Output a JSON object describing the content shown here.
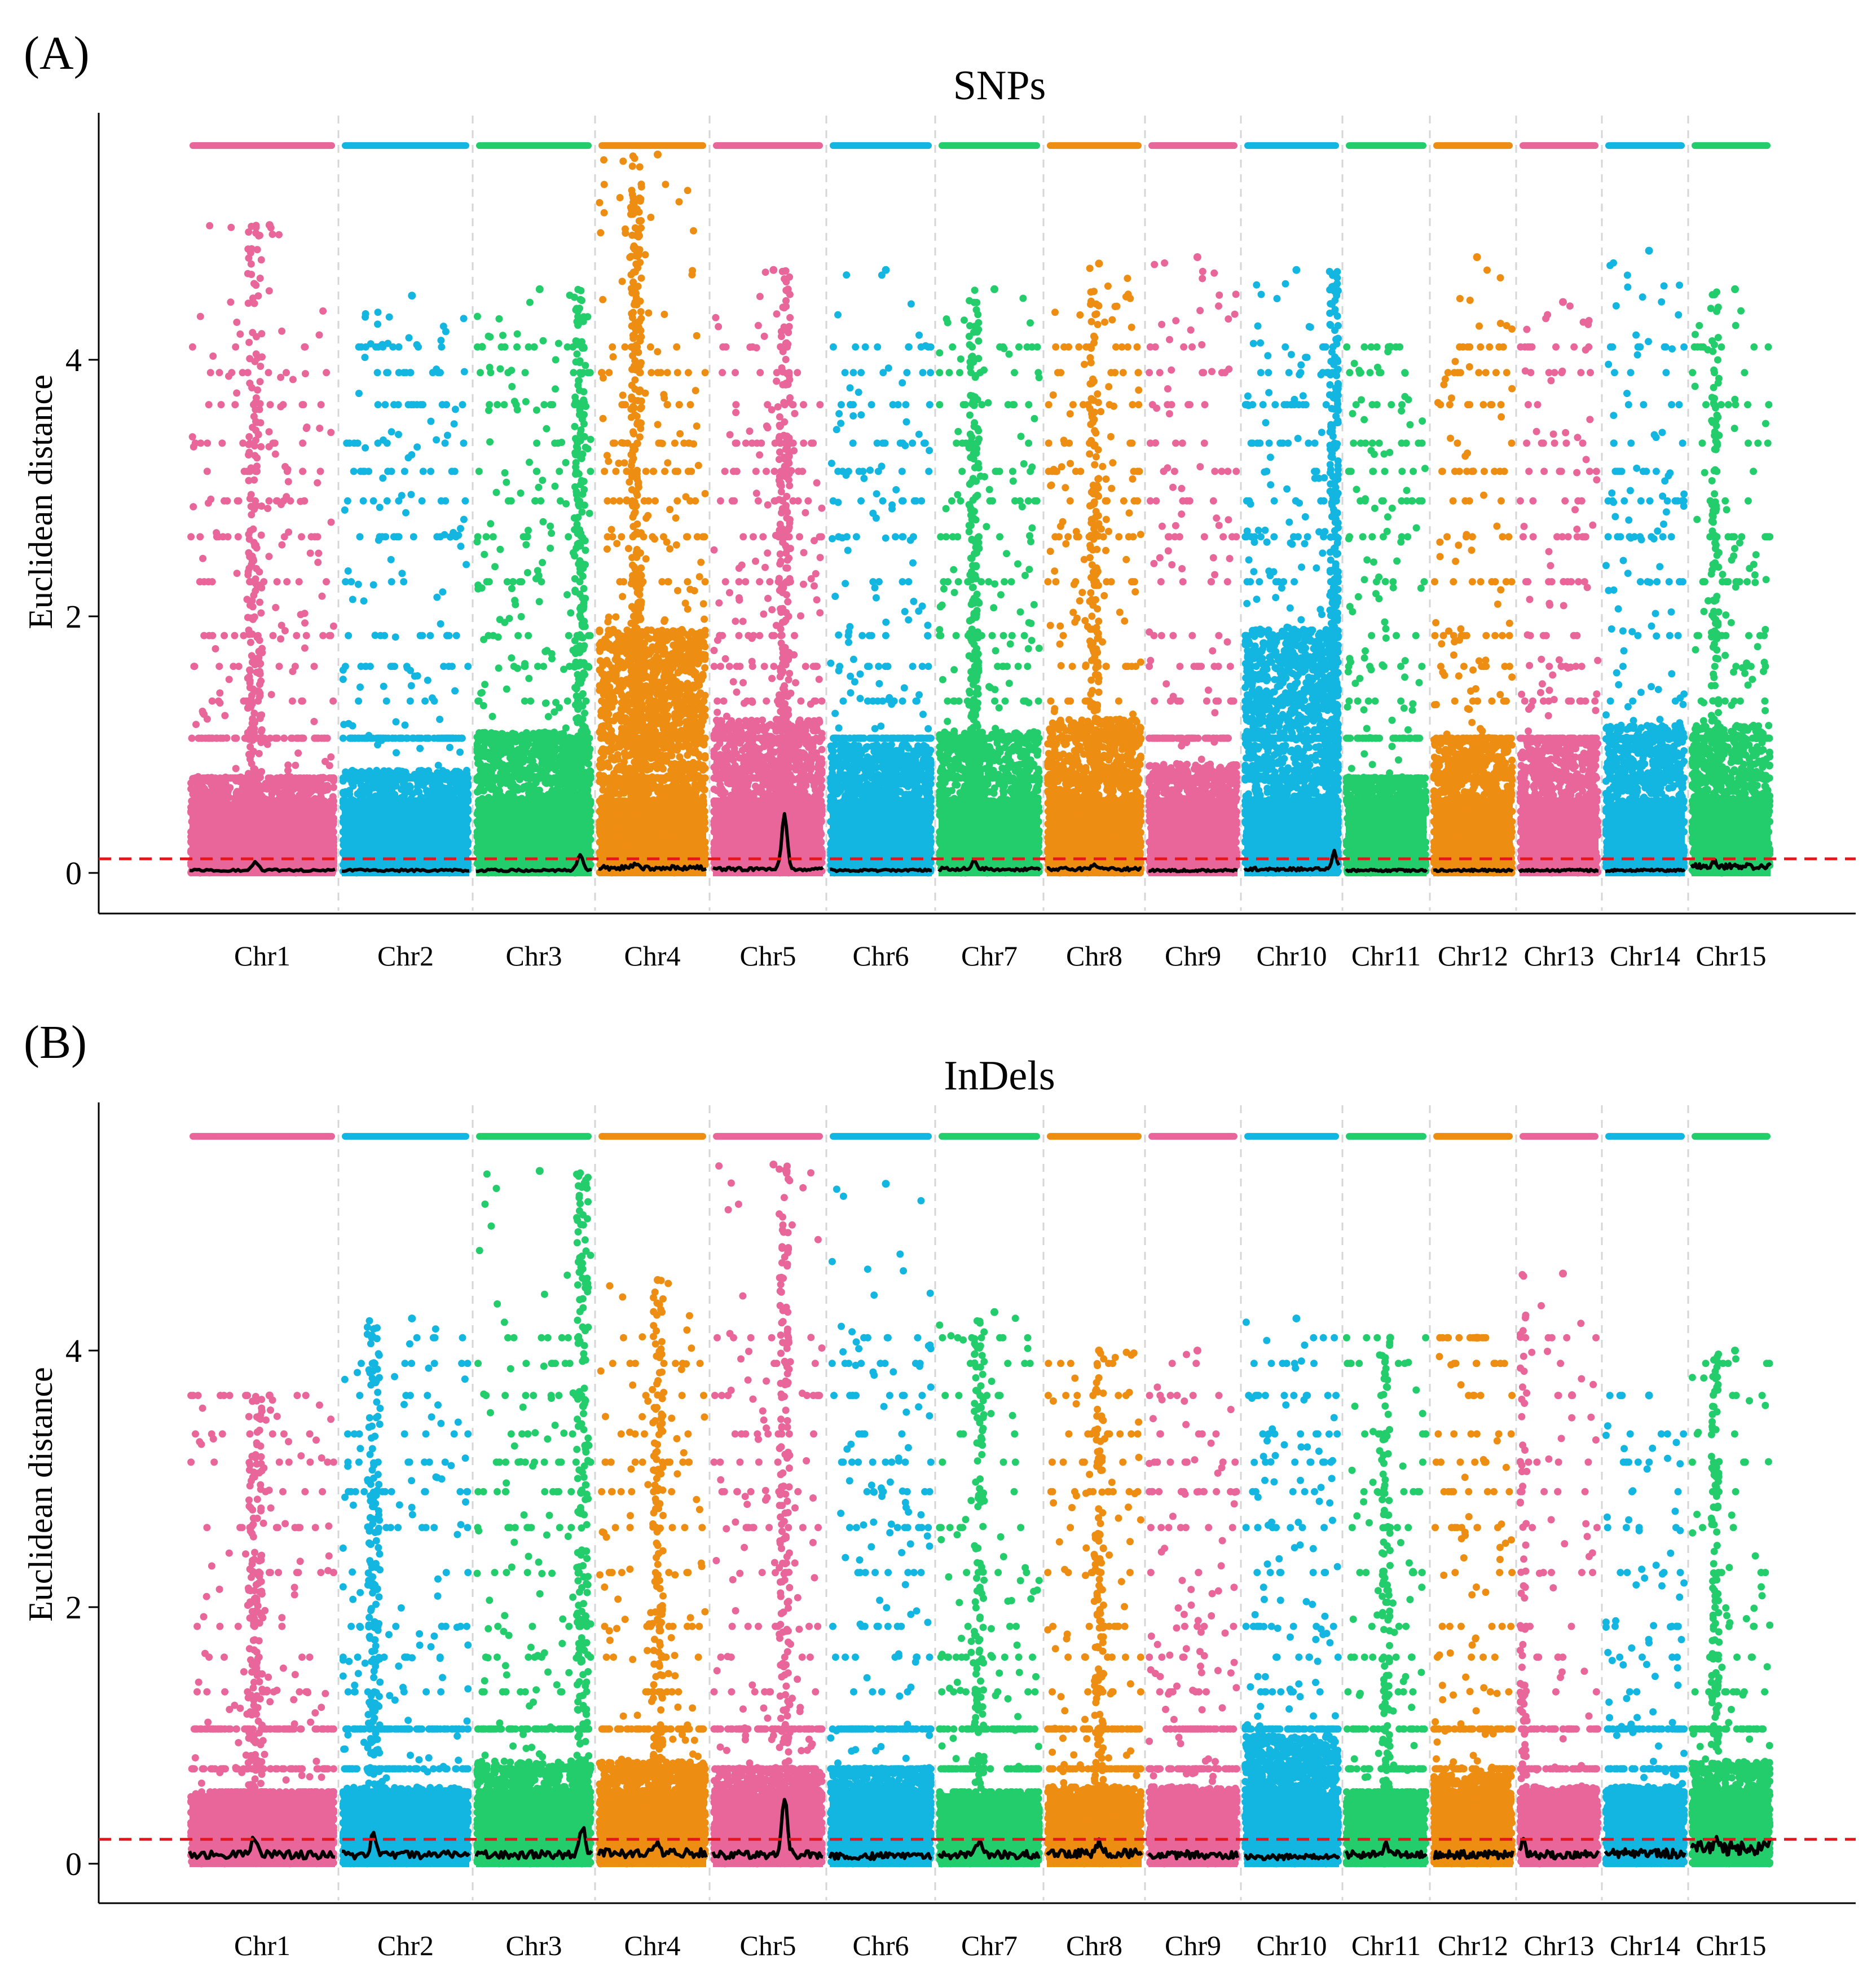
{
  "chart_data": [
    {
      "type": "scatter",
      "panel_label": "(A)",
      "title": "SNPs",
      "xlabel": "",
      "ylabel": "Euclidean distance",
      "ylim": [
        -0.3,
        5.9
      ],
      "yticks": [
        0,
        2,
        4
      ],
      "threshold": 0.11,
      "top_band_value": 5.67,
      "chromosomes": [
        "Chr1",
        "Chr2",
        "Chr3",
        "Chr4",
        "Chr5",
        "Chr6",
        "Chr7",
        "Chr8",
        "Chr9",
        "Chr10",
        "Chr11",
        "Chr12",
        "Chr13",
        "Chr14",
        "Chr15"
      ],
      "colors": [
        "#e8669a",
        "#13b6e0",
        "#23cd6b",
        "#ed8d12",
        "#e8669a",
        "#13b6e0",
        "#23cd6b",
        "#ed8d12",
        "#e8669a",
        "#13b6e0",
        "#23cd6b",
        "#ed8d12",
        "#e8669a",
        "#13b6e0",
        "#23cd6b"
      ],
      "chromosome_length_weights": [
        1.1,
        0.98,
        0.92,
        0.85,
        0.88,
        0.82,
        0.78,
        0.75,
        0.7,
        0.74,
        0.63,
        0.63,
        0.57,
        0.57,
        0.57
      ],
      "max_values": [
        5.05,
        4.5,
        4.55,
        5.6,
        4.7,
        4.7,
        4.55,
        4.75,
        4.8,
        4.7,
        4.1,
        4.8,
        4.45,
        4.85,
        4.55
      ],
      "dense_top": [
        0.75,
        0.8,
        1.1,
        1.9,
        1.2,
        1.0,
        1.1,
        1.2,
        0.85,
        1.9,
        0.75,
        1.05,
        1.05,
        1.15,
        1.15
      ],
      "smooth_baseline": [
        0.02,
        0.02,
        0.02,
        0.04,
        0.03,
        0.02,
        0.03,
        0.03,
        0.02,
        0.03,
        0.02,
        0.02,
        0.02,
        0.02,
        0.05
      ],
      "peaks": [
        {
          "chr": "Chr1",
          "pos": 0.45,
          "value": 0.08
        },
        {
          "chr": "Chr3",
          "pos": 0.9,
          "value": 0.15
        },
        {
          "chr": "Chr4",
          "pos": 0.35,
          "value": 0.08
        },
        {
          "chr": "Chr5",
          "pos": 0.65,
          "value": 0.45
        },
        {
          "chr": "Chr7",
          "pos": 0.35,
          "value": 0.1
        },
        {
          "chr": "Chr8",
          "pos": 0.5,
          "value": 0.06
        },
        {
          "chr": "Chr10",
          "pos": 0.95,
          "value": 0.17
        },
        {
          "chr": "Chr15",
          "pos": 0.3,
          "value": 0.09
        }
      ]
    },
    {
      "type": "scatter",
      "panel_label": "(B)",
      "title": "InDels",
      "xlabel": "",
      "ylabel": "Euclidean distance",
      "ylim": [
        -0.3,
        5.9
      ],
      "yticks": [
        0,
        2,
        4
      ],
      "threshold": 0.19,
      "top_band_value": 5.67,
      "chromosomes": [
        "Chr1",
        "Chr2",
        "Chr3",
        "Chr4",
        "Chr5",
        "Chr6",
        "Chr7",
        "Chr8",
        "Chr9",
        "Chr10",
        "Chr11",
        "Chr12",
        "Chr13",
        "Chr14",
        "Chr15"
      ],
      "colors": [
        "#e8669a",
        "#13b6e0",
        "#23cd6b",
        "#ed8d12",
        "#e8669a",
        "#13b6e0",
        "#23cd6b",
        "#ed8d12",
        "#e8669a",
        "#13b6e0",
        "#23cd6b",
        "#ed8d12",
        "#e8669a",
        "#13b6e0",
        "#23cd6b"
      ],
      "chromosome_length_weights": [
        1.1,
        0.98,
        0.92,
        0.85,
        0.88,
        0.82,
        0.78,
        0.75,
        0.7,
        0.74,
        0.63,
        0.63,
        0.57,
        0.57,
        0.57
      ],
      "max_values": [
        3.65,
        4.25,
        5.4,
        4.55,
        5.45,
        5.3,
        4.3,
        4.0,
        4.0,
        4.25,
        4.1,
        4.1,
        4.6,
        3.65,
        4.0
      ],
      "dense_top": [
        0.55,
        0.6,
        0.8,
        0.8,
        0.75,
        0.75,
        0.55,
        0.6,
        0.6,
        1.0,
        0.55,
        0.7,
        0.6,
        0.6,
        0.8
      ],
      "smooth_baseline": [
        0.07,
        0.07,
        0.07,
        0.08,
        0.07,
        0.06,
        0.07,
        0.08,
        0.07,
        0.05,
        0.07,
        0.07,
        0.07,
        0.08,
        0.12
      ],
      "peaks": [
        {
          "chr": "Chr1",
          "pos": 0.45,
          "value": 0.2
        },
        {
          "chr": "Chr2",
          "pos": 0.25,
          "value": 0.22
        },
        {
          "chr": "Chr3",
          "pos": 0.92,
          "value": 0.28
        },
        {
          "chr": "Chr4",
          "pos": 0.55,
          "value": 0.15
        },
        {
          "chr": "Chr5",
          "pos": 0.65,
          "value": 0.52
        },
        {
          "chr": "Chr7",
          "pos": 0.4,
          "value": 0.18
        },
        {
          "chr": "Chr8",
          "pos": 0.55,
          "value": 0.18
        },
        {
          "chr": "Chr11",
          "pos": 0.5,
          "value": 0.15
        },
        {
          "chr": "Chr13",
          "pos": 0.05,
          "value": 0.2
        },
        {
          "chr": "Chr15",
          "pos": 0.3,
          "value": 0.18
        }
      ]
    }
  ]
}
